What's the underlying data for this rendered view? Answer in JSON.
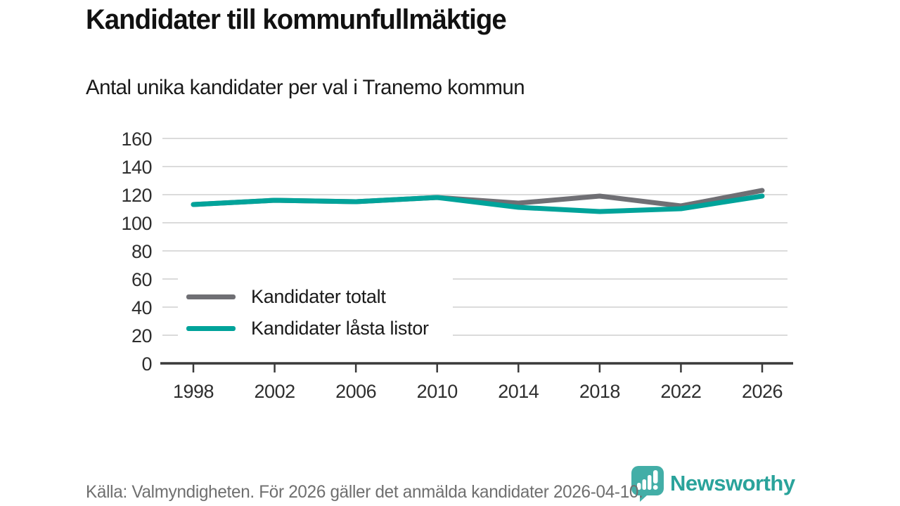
{
  "chart_data": {
    "type": "line",
    "title": "Kandidater till kommunfullmäktige",
    "subtitle": "Antal unika kandidater per val i Tranemo kommun",
    "categories": [
      "1998",
      "2002",
      "2006",
      "2010",
      "2014",
      "2018",
      "2022",
      "2026"
    ],
    "series": [
      {
        "name": "Kandidater totalt",
        "color": "#6f6f74",
        "values": [
          113,
          116,
          115,
          118,
          114,
          119,
          112,
          123
        ]
      },
      {
        "name": "Kandidater låsta listor",
        "color": "#00a39a",
        "values": [
          113,
          116,
          115,
          118,
          111,
          108,
          110,
          119
        ]
      }
    ],
    "xlabel": "",
    "ylabel": "",
    "ylim": [
      0,
      160
    ],
    "ytick_step": 20,
    "grid": "horizontal",
    "legend_position": "inside-left-middle"
  },
  "footer": {
    "source_text": "Källa: Valmyndigheten. För 2026 gäller det anmälda kandidater 2026-04-10."
  },
  "branding": {
    "logo_text": "Newsworthy",
    "logo_color": "#2aa39b"
  },
  "colors": {
    "grid": "#dbdbdb",
    "axis": "#3a3a3a",
    "tick_text": "#2e2e2e",
    "title_text": "#111111",
    "muted_text": "#6f6f6f",
    "background": "#ffffff"
  }
}
